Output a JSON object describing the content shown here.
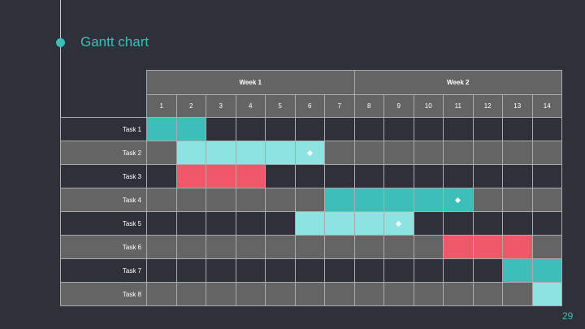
{
  "slide": {
    "title": "Gantt chart",
    "page_number": "29"
  },
  "colors": {
    "background": "#2e3139",
    "accent": "#3bbfb8",
    "header_fill": "#646464",
    "row_dark": "#2e3139",
    "row_light": "#646464",
    "teal": "#3bbfb8",
    "light_teal": "#8de3e0",
    "coral": "#f0586a"
  },
  "chart_data": {
    "type": "table",
    "weeks": [
      {
        "label": "Week 1",
        "start_day": 1,
        "end_day": 7
      },
      {
        "label": "Week 2",
        "start_day": 8,
        "end_day": 14
      }
    ],
    "days": [
      "1",
      "2",
      "3",
      "4",
      "5",
      "6",
      "7",
      "8",
      "9",
      "10",
      "11",
      "12",
      "13",
      "14"
    ],
    "tasks": [
      {
        "name": "Task 1",
        "start": 1,
        "end": 2,
        "color": "teal",
        "milestone": null
      },
      {
        "name": "Task 2",
        "start": 2,
        "end": 6,
        "color": "light_teal",
        "milestone": 6
      },
      {
        "name": "Task 3",
        "start": 2,
        "end": 4,
        "color": "coral",
        "milestone": null
      },
      {
        "name": "Task 4",
        "start": 7,
        "end": 11,
        "color": "teal",
        "milestone": 11
      },
      {
        "name": "Task 5",
        "start": 6,
        "end": 9,
        "color": "light_teal",
        "milestone": 9
      },
      {
        "name": "Task 6",
        "start": 11,
        "end": 13,
        "color": "coral",
        "milestone": null
      },
      {
        "name": "Task 7",
        "start": 13,
        "end": 14,
        "color": "teal",
        "milestone": null
      },
      {
        "name": "Task 8",
        "start": 14,
        "end": 14,
        "color": "light_teal",
        "milestone": null
      }
    ]
  }
}
